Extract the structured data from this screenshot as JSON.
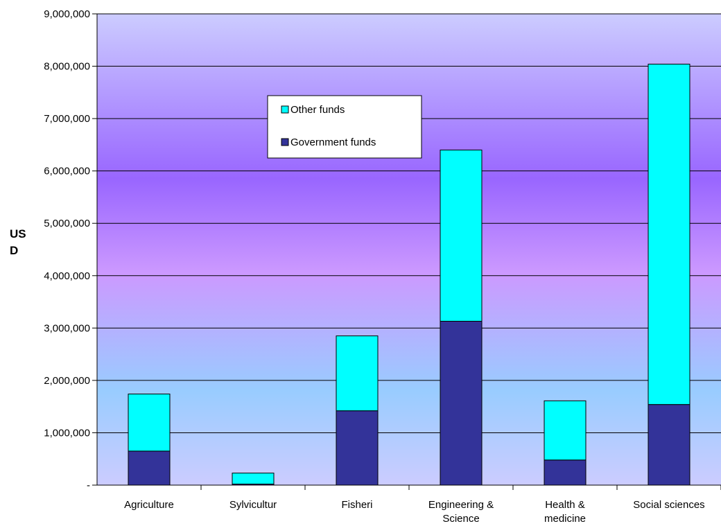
{
  "chart_data": {
    "type": "bar",
    "stacked": true,
    "categories": [
      "Agriculture",
      "Sylvicultur",
      "Fisheri",
      "Engineering & Science",
      "Health & medicine",
      "Social sciences"
    ],
    "category_lines": [
      [
        "Agriculture"
      ],
      [
        "Sylvicultur"
      ],
      [
        "Fisheri"
      ],
      [
        "Engineering &",
        "Science"
      ],
      [
        "Health &",
        "medicine"
      ],
      [
        "Social sciences"
      ]
    ],
    "series": [
      {
        "name": "Government funds",
        "values": [
          650000,
          20000,
          1420000,
          3130000,
          480000,
          1540000
        ],
        "color": "#333399"
      },
      {
        "name": "Other funds",
        "values": [
          1090000,
          210000,
          1430000,
          3270000,
          1130000,
          6500000
        ],
        "color": "#00FFFF"
      }
    ],
    "legend_order": [
      "Other funds",
      "Government funds"
    ],
    "ylabel_lines": [
      "US",
      "D"
    ],
    "ylim": [
      0,
      9000000
    ],
    "yticks": [
      0,
      1000000,
      2000000,
      3000000,
      4000000,
      5000000,
      6000000,
      7000000,
      8000000,
      9000000
    ],
    "ytick_labels": [
      "-",
      "1,000,000",
      "2,000,000",
      "3,000,000",
      "4,000,000",
      "5,000,000",
      "6,000,000",
      "7,000,000",
      "8,000,000",
      "9,000,000"
    ],
    "grid": true,
    "legend_position": "top-center",
    "background_gradient": [
      "#ccccff",
      "#9966ff",
      "#cc99ff",
      "#99ccff",
      "#ccccff"
    ]
  }
}
